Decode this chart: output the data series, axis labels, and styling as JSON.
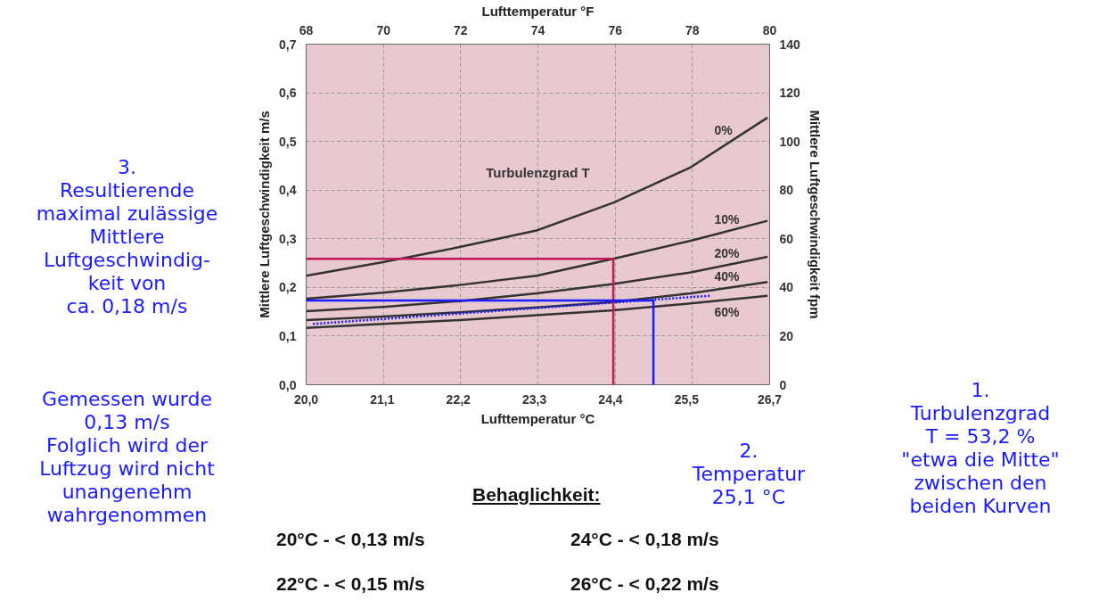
{
  "chart_data": {
    "type": "line",
    "title": "Lufttemperatur °F",
    "xlabel": "Lufttemperatur °C",
    "ylabel": "Mittlere Luftgeschwindigkeit m/s",
    "y2label": "Mittlere Luftgeschwindigkeit fpm",
    "legend_title": "Turbulenzgrad T",
    "xlim": [
      20,
      26.7
    ],
    "xticks": [
      {
        "value": 20.0,
        "label": "20,0"
      },
      {
        "value": 21.1,
        "label": "21,1"
      },
      {
        "value": 22.2,
        "label": "22,2"
      },
      {
        "value": 23.3,
        "label": "23,3"
      },
      {
        "value": 24.4,
        "label": "24,4"
      },
      {
        "value": 25.5,
        "label": "25,5"
      },
      {
        "value": 26.7,
        "label": "26,7"
      }
    ],
    "x2lim": [
      68,
      80
    ],
    "x2ticks": [
      68,
      70,
      72,
      74,
      76,
      78,
      80
    ],
    "ylim": [
      0,
      0.7
    ],
    "yticks": [
      {
        "value": 0,
        "label": "0,0"
      },
      {
        "value": 0.1,
        "label": "0,1"
      },
      {
        "value": 0.2,
        "label": "0,2"
      },
      {
        "value": 0.3,
        "label": "0,3"
      },
      {
        "value": 0.4,
        "label": "0,4"
      },
      {
        "value": 0.5,
        "label": "0,5"
      },
      {
        "value": 0.6,
        "label": "0,6"
      },
      {
        "value": 0.7,
        "label": "0,7"
      }
    ],
    "y2lim": [
      0,
      140
    ],
    "y2ticks": [
      0,
      20,
      40,
      60,
      80,
      100,
      120,
      140
    ],
    "grid": true,
    "series": [
      {
        "name": "0%",
        "color": "#333333",
        "x": [
          20,
          21.11,
          22.22,
          23.33,
          24.44,
          25.56,
          26.67
        ],
        "values": [
          0.224,
          0.252,
          0.283,
          0.317,
          0.374,
          0.447,
          0.549
        ]
      },
      {
        "name": "10%",
        "color": "#333333",
        "x": [
          20,
          21.11,
          22.22,
          23.33,
          24.44,
          25.56,
          26.67
        ],
        "values": [
          0.177,
          0.189,
          0.205,
          0.224,
          0.259,
          0.296,
          0.337
        ]
      },
      {
        "name": "20%",
        "color": "#333333",
        "x": [
          20,
          21.11,
          22.22,
          23.33,
          24.44,
          25.56,
          26.67
        ],
        "values": [
          0.151,
          0.16,
          0.172,
          0.188,
          0.207,
          0.231,
          0.263
        ]
      },
      {
        "name": "40%",
        "color": "#333333",
        "x": [
          20,
          21.11,
          22.22,
          23.33,
          24.44,
          25.56,
          26.67
        ],
        "values": [
          0.133,
          0.14,
          0.149,
          0.159,
          0.17,
          0.188,
          0.211
        ]
      },
      {
        "name": "60%",
        "color": "#333333",
        "x": [
          20,
          21.11,
          22.22,
          23.33,
          24.44,
          25.56,
          26.67
        ],
        "values": [
          0.117,
          0.125,
          0.133,
          0.143,
          0.153,
          0.167,
          0.183
        ]
      },
      {
        "color": "#1a1aff",
        "line_style": "dotted",
        "x": [
          20.1,
          25.85
        ],
        "values": [
          0.125,
          0.183
        ]
      },
      {
        "color": "#c0185a",
        "x": [
          24.44,
          24.44,
          20
        ],
        "values": [
          0,
          0.259,
          0.259
        ]
      },
      {
        "color": "#1a1aff",
        "x": [
          25.02,
          25.02,
          20
        ],
        "values": [
          0,
          0.173,
          0.173
        ]
      }
    ],
    "annotations": [
      "3.\nResultierende\nmaximal zulässige\nMittlere\nLuftgeschwindig-\nkeit von\nca. 0,18 m/s",
      "Gemessen wurde\n0,13 m/s\nFolglich wird der\nLuftzug wird nicht\nunangenehm\nwahrgenommen",
      "2.\nTemperatur\n25,1 °C",
      "1.\nTurbulenzgrad\nT = 53,2 %\n\"etwa die Mitte\"\nzwischen den\nbeiden Kurven",
      "Behaglichkeit:",
      "20°C  -  < 0,13 m/s",
      "24°C  -  < 0,18 m/s",
      "22°C  -  < 0,15 m/s",
      "26°C  -  < 0,22 m/s"
    ]
  }
}
